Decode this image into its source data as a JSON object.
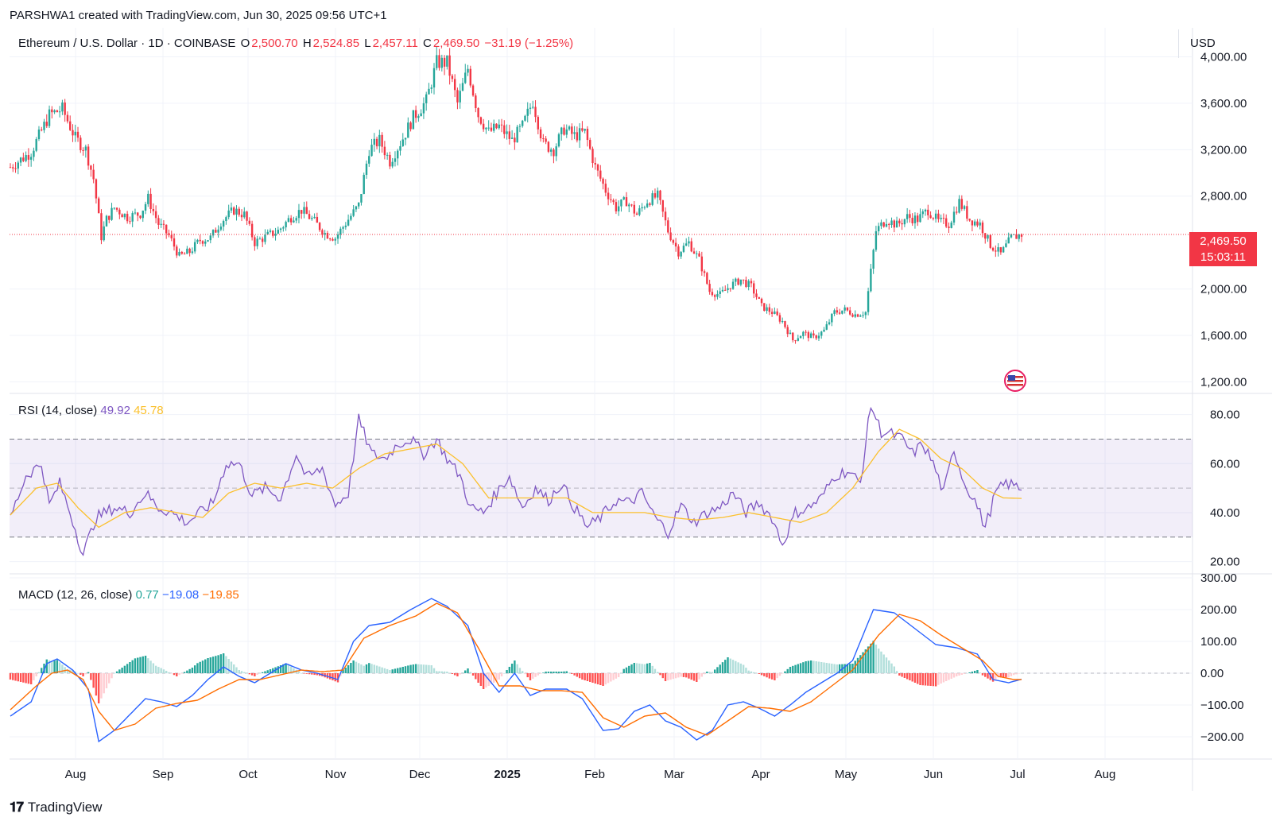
{
  "caption": "PARSHWA1 created with TradingView.com, Jun 30, 2025 09:56 UTC+1",
  "symbol": {
    "name": "Ethereum / U.S. Dollar · 1D · COINBASE",
    "o_label": "O",
    "o": "2,500.70",
    "h_label": "H",
    "h": "2,524.85",
    "l_label": "L",
    "l": "2,457.11",
    "c_label": "C",
    "c": "2,469.50",
    "change": "−31.19 (−1.25%)"
  },
  "currency": "USD",
  "last_price": {
    "price": "2,469.50",
    "countdown": "15:03:11"
  },
  "rsi_legend": {
    "label": "RSI (14, close)",
    "rsi": "49.92",
    "ma": "45.78"
  },
  "macd_legend": {
    "label": "MACD (12, 26, close)",
    "hist": "0.77",
    "macd": "−19.08",
    "signal": "−19.85"
  },
  "brand": "TradingView",
  "colors": {
    "up": "#26a69a",
    "down": "#f23645",
    "rsi": "#7e57c2",
    "rsi_ma": "#fbc02d",
    "macd": "#2962ff",
    "signal": "#ff6d00"
  },
  "chart_data": {
    "type": "candlestick",
    "x_ticks": [
      "Aug",
      "Sep",
      "Oct",
      "Nov",
      "Dec",
      "2025",
      "Feb",
      "Mar",
      "Apr",
      "May",
      "Jun",
      "Jul",
      "Aug"
    ],
    "price_axis": {
      "ticks": [
        "4,000.00",
        "3,600.00",
        "3,200.00",
        "2,800.00",
        "2,000.00",
        "1,600.00",
        "1,200.00"
      ],
      "tick_values": [
        4000,
        3600,
        3200,
        2800,
        2000,
        1600,
        1200
      ],
      "ylim": [
        1100,
        4250
      ]
    },
    "rsi_axis": {
      "ticks": [
        "80.00",
        "60.00",
        "40.00",
        "20.00"
      ],
      "tick_values": [
        80,
        60,
        40,
        20
      ],
      "ylim": [
        15,
        88
      ],
      "band": [
        30,
        70
      ],
      "mid": 50
    },
    "macd_axis": {
      "ticks": [
        "300.00",
        "200.00",
        "100.00",
        "0.00",
        "−100.00",
        "−200.00"
      ],
      "tick_values": [
        300,
        200,
        100,
        0,
        -100,
        -200
      ],
      "ylim": [
        -270,
        300
      ]
    },
    "price_path": [
      [
        0,
        3050
      ],
      [
        8,
        3180
      ],
      [
        15,
        3500
      ],
      [
        20,
        3550
      ],
      [
        25,
        3300
      ],
      [
        29,
        3200
      ],
      [
        32,
        2950
      ],
      [
        35,
        2450
      ],
      [
        37,
        2600
      ],
      [
        40,
        2700
      ],
      [
        45,
        2620
      ],
      [
        50,
        2650
      ],
      [
        53,
        2780
      ],
      [
        57,
        2560
      ],
      [
        61,
        2460
      ],
      [
        65,
        2280
      ],
      [
        69,
        2320
      ],
      [
        73,
        2420
      ],
      [
        77,
        2440
      ],
      [
        81,
        2580
      ],
      [
        86,
        2680
      ],
      [
        90,
        2640
      ],
      [
        94,
        2400
      ],
      [
        99,
        2460
      ],
      [
        103,
        2500
      ],
      [
        108,
        2620
      ],
      [
        112,
        2680
      ],
      [
        117,
        2580
      ],
      [
        121,
        2480
      ],
      [
        125,
        2440
      ],
      [
        130,
        2600
      ],
      [
        134,
        2720
      ],
      [
        138,
        3200
      ],
      [
        142,
        3280
      ],
      [
        146,
        3100
      ],
      [
        151,
        3300
      ],
      [
        155,
        3480
      ],
      [
        160,
        3620
      ],
      [
        164,
        3950
      ],
      [
        168,
        3950
      ],
      [
        172,
        3600
      ],
      [
        176,
        3900
      ],
      [
        180,
        3500
      ],
      [
        184,
        3350
      ],
      [
        188,
        3400
      ],
      [
        193,
        3280
      ],
      [
        197,
        3400
      ],
      [
        201,
        3620
      ],
      [
        205,
        3250
      ],
      [
        209,
        3200
      ],
      [
        213,
        3380
      ],
      [
        217,
        3320
      ],
      [
        221,
        3350
      ],
      [
        225,
        3050
      ],
      [
        229,
        2850
      ],
      [
        233,
        2700
      ],
      [
        237,
        2760
      ],
      [
        241,
        2640
      ],
      [
        245,
        2760
      ],
      [
        249,
        2800
      ],
      [
        253,
        2500
      ],
      [
        257,
        2320
      ],
      [
        261,
        2400
      ],
      [
        265,
        2250
      ],
      [
        269,
        1980
      ],
      [
        273,
        1950
      ],
      [
        277,
        2030
      ],
      [
        281,
        2080
      ],
      [
        285,
        2020
      ],
      [
        289,
        1850
      ],
      [
        293,
        1800
      ],
      [
        297,
        1720
      ],
      [
        301,
        1560
      ],
      [
        305,
        1620
      ],
      [
        309,
        1580
      ],
      [
        313,
        1640
      ],
      [
        317,
        1800
      ],
      [
        321,
        1820
      ],
      [
        325,
        1780
      ],
      [
        329,
        1800
      ],
      [
        333,
        2500
      ],
      [
        337,
        2600
      ],
      [
        341,
        2550
      ],
      [
        345,
        2620
      ],
      [
        349,
        2600
      ],
      [
        353,
        2680
      ],
      [
        357,
        2580
      ],
      [
        361,
        2560
      ],
      [
        365,
        2750
      ],
      [
        369,
        2600
      ],
      [
        373,
        2560
      ],
      [
        377,
        2380
      ],
      [
        381,
        2300
      ],
      [
        385,
        2440
      ],
      [
        389,
        2470
      ]
    ],
    "rsi": [
      [
        0,
        38
      ],
      [
        6,
        55
      ],
      [
        12,
        60
      ],
      [
        15,
        43
      ],
      [
        19,
        52
      ],
      [
        23,
        40
      ],
      [
        28,
        23
      ],
      [
        33,
        38
      ],
      [
        40,
        42
      ],
      [
        46,
        40
      ],
      [
        52,
        48
      ],
      [
        57,
        42
      ],
      [
        62,
        40
      ],
      [
        68,
        36
      ],
      [
        73,
        40
      ],
      [
        78,
        44
      ],
      [
        83,
        60
      ],
      [
        88,
        60
      ],
      [
        93,
        47
      ],
      [
        98,
        50
      ],
      [
        104,
        46
      ],
      [
        110,
        64
      ],
      [
        114,
        54
      ],
      [
        120,
        58
      ],
      [
        125,
        43
      ],
      [
        130,
        48
      ],
      [
        134,
        78
      ],
      [
        139,
        64
      ],
      [
        144,
        62
      ],
      [
        149,
        68
      ],
      [
        154,
        70
      ],
      [
        159,
        64
      ],
      [
        164,
        70
      ],
      [
        168,
        62
      ],
      [
        173,
        55
      ],
      [
        177,
        42
      ],
      [
        182,
        40
      ],
      [
        187,
        48
      ],
      [
        192,
        55
      ],
      [
        197,
        42
      ],
      [
        202,
        50
      ],
      [
        207,
        45
      ],
      [
        212,
        52
      ],
      [
        217,
        42
      ],
      [
        222,
        34
      ],
      [
        227,
        38
      ],
      [
        233,
        45
      ],
      [
        238,
        44
      ],
      [
        243,
        48
      ],
      [
        248,
        38
      ],
      [
        253,
        32
      ],
      [
        258,
        43
      ],
      [
        263,
        36
      ],
      [
        268,
        40
      ],
      [
        273,
        42
      ],
      [
        278,
        48
      ],
      [
        283,
        40
      ],
      [
        288,
        44
      ],
      [
        293,
        38
      ],
      [
        297,
        27
      ],
      [
        302,
        40
      ],
      [
        307,
        42
      ],
      [
        312,
        46
      ],
      [
        317,
        55
      ],
      [
        322,
        57
      ],
      [
        327,
        52
      ],
      [
        331,
        84
      ],
      [
        335,
        73
      ],
      [
        339,
        72
      ],
      [
        343,
        70
      ],
      [
        347,
        64
      ],
      [
        351,
        68
      ],
      [
        355,
        60
      ],
      [
        359,
        48
      ],
      [
        363,
        66
      ],
      [
        367,
        52
      ],
      [
        371,
        45
      ],
      [
        375,
        34
      ],
      [
        379,
        48
      ],
      [
        383,
        52
      ],
      [
        389,
        50
      ]
    ],
    "rsi_ma": [
      [
        0,
        39
      ],
      [
        10,
        50
      ],
      [
        18,
        52
      ],
      [
        26,
        42
      ],
      [
        34,
        34
      ],
      [
        44,
        40
      ],
      [
        54,
        42
      ],
      [
        64,
        40
      ],
      [
        74,
        38
      ],
      [
        84,
        48
      ],
      [
        94,
        52
      ],
      [
        104,
        50
      ],
      [
        114,
        52
      ],
      [
        124,
        50
      ],
      [
        134,
        58
      ],
      [
        144,
        64
      ],
      [
        154,
        66
      ],
      [
        164,
        68
      ],
      [
        174,
        60
      ],
      [
        184,
        46
      ],
      [
        194,
        46
      ],
      [
        204,
        46
      ],
      [
        214,
        46
      ],
      [
        224,
        40
      ],
      [
        234,
        40
      ],
      [
        244,
        40
      ],
      [
        254,
        38
      ],
      [
        264,
        37
      ],
      [
        274,
        38
      ],
      [
        284,
        40
      ],
      [
        294,
        38
      ],
      [
        304,
        36
      ],
      [
        314,
        40
      ],
      [
        324,
        50
      ],
      [
        334,
        65
      ],
      [
        342,
        74
      ],
      [
        350,
        70
      ],
      [
        358,
        62
      ],
      [
        366,
        58
      ],
      [
        374,
        50
      ],
      [
        382,
        46
      ],
      [
        389,
        45.8
      ]
    ],
    "macd": [
      [
        0,
        -135
      ],
      [
        8,
        -90
      ],
      [
        14,
        30
      ],
      [
        18,
        45
      ],
      [
        24,
        10
      ],
      [
        30,
        -50
      ],
      [
        34,
        -215
      ],
      [
        40,
        -180
      ],
      [
        46,
        -130
      ],
      [
        52,
        -80
      ],
      [
        58,
        -90
      ],
      [
        64,
        -105
      ],
      [
        70,
        -70
      ],
      [
        76,
        -20
      ],
      [
        82,
        20
      ],
      [
        88,
        -10
      ],
      [
        94,
        -30
      ],
      [
        100,
        0
      ],
      [
        106,
        30
      ],
      [
        112,
        10
      ],
      [
        118,
        0
      ],
      [
        122,
        -10
      ],
      [
        126,
        -20
      ],
      [
        132,
        100
      ],
      [
        138,
        150
      ],
      [
        146,
        160
      ],
      [
        154,
        200
      ],
      [
        162,
        235
      ],
      [
        168,
        210
      ],
      [
        176,
        150
      ],
      [
        182,
        0
      ],
      [
        188,
        -60
      ],
      [
        194,
        0
      ],
      [
        200,
        -70
      ],
      [
        206,
        -50
      ],
      [
        214,
        -50
      ],
      [
        220,
        -80
      ],
      [
        228,
        -180
      ],
      [
        234,
        -175
      ],
      [
        240,
        -120
      ],
      [
        246,
        -100
      ],
      [
        252,
        -150
      ],
      [
        258,
        -170
      ],
      [
        264,
        -210
      ],
      [
        270,
        -180
      ],
      [
        276,
        -100
      ],
      [
        282,
        -90
      ],
      [
        288,
        -110
      ],
      [
        294,
        -135
      ],
      [
        300,
        -100
      ],
      [
        306,
        -60
      ],
      [
        312,
        -30
      ],
      [
        318,
        0
      ],
      [
        324,
        40
      ],
      [
        332,
        200
      ],
      [
        340,
        190
      ],
      [
        348,
        140
      ],
      [
        356,
        90
      ],
      [
        364,
        80
      ],
      [
        372,
        60
      ],
      [
        378,
        -20
      ],
      [
        384,
        -30
      ],
      [
        389,
        -19
      ]
    ],
    "signal": [
      [
        0,
        -115
      ],
      [
        10,
        -40
      ],
      [
        16,
        0
      ],
      [
        22,
        10
      ],
      [
        28,
        -20
      ],
      [
        34,
        -120
      ],
      [
        40,
        -180
      ],
      [
        48,
        -160
      ],
      [
        56,
        -110
      ],
      [
        64,
        -95
      ],
      [
        72,
        -85
      ],
      [
        80,
        -50
      ],
      [
        88,
        -20
      ],
      [
        96,
        -20
      ],
      [
        104,
        -5
      ],
      [
        112,
        10
      ],
      [
        120,
        5
      ],
      [
        128,
        10
      ],
      [
        136,
        110
      ],
      [
        146,
        150
      ],
      [
        156,
        180
      ],
      [
        164,
        220
      ],
      [
        172,
        190
      ],
      [
        180,
        80
      ],
      [
        188,
        -40
      ],
      [
        196,
        -40
      ],
      [
        204,
        -55
      ],
      [
        212,
        -55
      ],
      [
        220,
        -60
      ],
      [
        228,
        -140
      ],
      [
        236,
        -170
      ],
      [
        244,
        -135
      ],
      [
        252,
        -125
      ],
      [
        260,
        -170
      ],
      [
        268,
        -195
      ],
      [
        276,
        -150
      ],
      [
        284,
        -105
      ],
      [
        292,
        -110
      ],
      [
        300,
        -120
      ],
      [
        308,
        -90
      ],
      [
        316,
        -40
      ],
      [
        324,
        10
      ],
      [
        334,
        120
      ],
      [
        342,
        185
      ],
      [
        350,
        165
      ],
      [
        358,
        120
      ],
      [
        366,
        80
      ],
      [
        374,
        40
      ],
      [
        380,
        -10
      ],
      [
        386,
        -20
      ],
      [
        389,
        -19.85
      ]
    ]
  }
}
